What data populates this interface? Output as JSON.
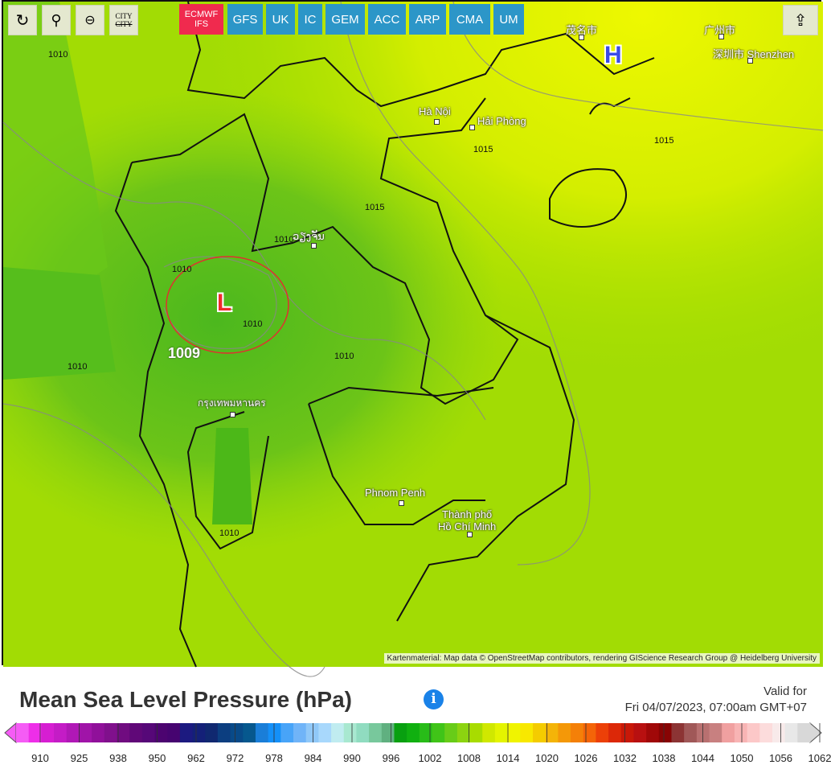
{
  "toolbar": {
    "tools": [
      {
        "name": "refresh",
        "icon": "refresh-icon"
      },
      {
        "name": "location",
        "icon": "location-pin-icon"
      },
      {
        "name": "zoom-out",
        "icon": "zoom-out-icon"
      },
      {
        "name": "city-toggle",
        "icon": "city-toggle-icon",
        "text": "CITY"
      }
    ],
    "models": [
      {
        "label": "ECMWF IFS",
        "active": true
      },
      {
        "label": "GFS"
      },
      {
        "label": "UK"
      },
      {
        "label": "IC"
      },
      {
        "label": "GEM"
      },
      {
        "label": "ACC"
      },
      {
        "label": "ARP"
      },
      {
        "label": "CMA"
      },
      {
        "label": "UM"
      }
    ],
    "share_icon": "share-icon"
  },
  "map": {
    "highs": [
      {
        "label": "H"
      }
    ],
    "lows": [
      {
        "label": "L"
      }
    ],
    "isobar_labels": [
      "1010",
      "1015",
      "1015",
      "1015",
      "1010",
      "1010",
      "1009",
      "1010",
      "1010",
      "1010",
      "1010"
    ],
    "cities": [
      "茂名市",
      "广州市",
      "深圳市 Shenzhen",
      "Hà Nội",
      "Hải Phòng",
      "ວຽງຈັນ",
      "กรุงเทพมหานคร",
      "Phnom Penh",
      "Thành phố",
      "Hồ Chí Minh"
    ],
    "attribution": "Kartenmaterial: Map data © OpenStreetMap contributors, rendering GIScience Research Group @ Heidelberg University",
    "colors": {
      "land_low": "#5cc21c",
      "mid": "#8fd60e",
      "high": "#e8f400",
      "high_marker": "#3a4be8",
      "low_marker": "#f02a2a"
    }
  },
  "legend": {
    "title": "Mean Sea Level Pressure (hPa)",
    "valid_label": "Valid for",
    "valid_time": "Fri 04/07/2023, 07:00am GMT+07",
    "ticks": [
      "910",
      "925",
      "938",
      "950",
      "962",
      "972",
      "978",
      "984",
      "990",
      "996",
      "1002",
      "1008",
      "1014",
      "1020",
      "1026",
      "1032",
      "1038",
      "1044",
      "1050",
      "1056",
      "1062"
    ],
    "colors": [
      "#f55cf5",
      "#ee2ee8",
      "#d61ed2",
      "#c41cc6",
      "#b018b6",
      "#a014a8",
      "#90109a",
      "#80108c",
      "#700c80",
      "#600878",
      "#560878",
      "#4c0470",
      "#460470",
      "#1c1a80",
      "#142078",
      "#102870",
      "#0c3e80",
      "#084a88",
      "#06588e",
      "#1a7ed8",
      "#1490f8",
      "#48a4f8",
      "#70b4f8",
      "#90c8f8",
      "#a8d8fc",
      "#c0ecf0",
      "#a8e8d0",
      "#90dcc0",
      "#78c89c",
      "#60b080",
      "#08a010",
      "#10b010",
      "#28bc18",
      "#40c418",
      "#68cc18",
      "#8cd410",
      "#a8dc00",
      "#d0e800",
      "#e4f400",
      "#f0f400",
      "#f8e800",
      "#f4cc00",
      "#f4b408",
      "#f49808",
      "#f48008",
      "#f46408",
      "#ec4008",
      "#dc2808",
      "#c81808",
      "#b81010",
      "#a00808",
      "#880404",
      "#8c3434",
      "#a05858",
      "#b87070",
      "#c88080",
      "#f0a0a0",
      "#f8b4b4",
      "#fcc8c8",
      "#fcdcdc",
      "#f8eaea",
      "#e8e8e8",
      "#d8d8d8"
    ]
  }
}
